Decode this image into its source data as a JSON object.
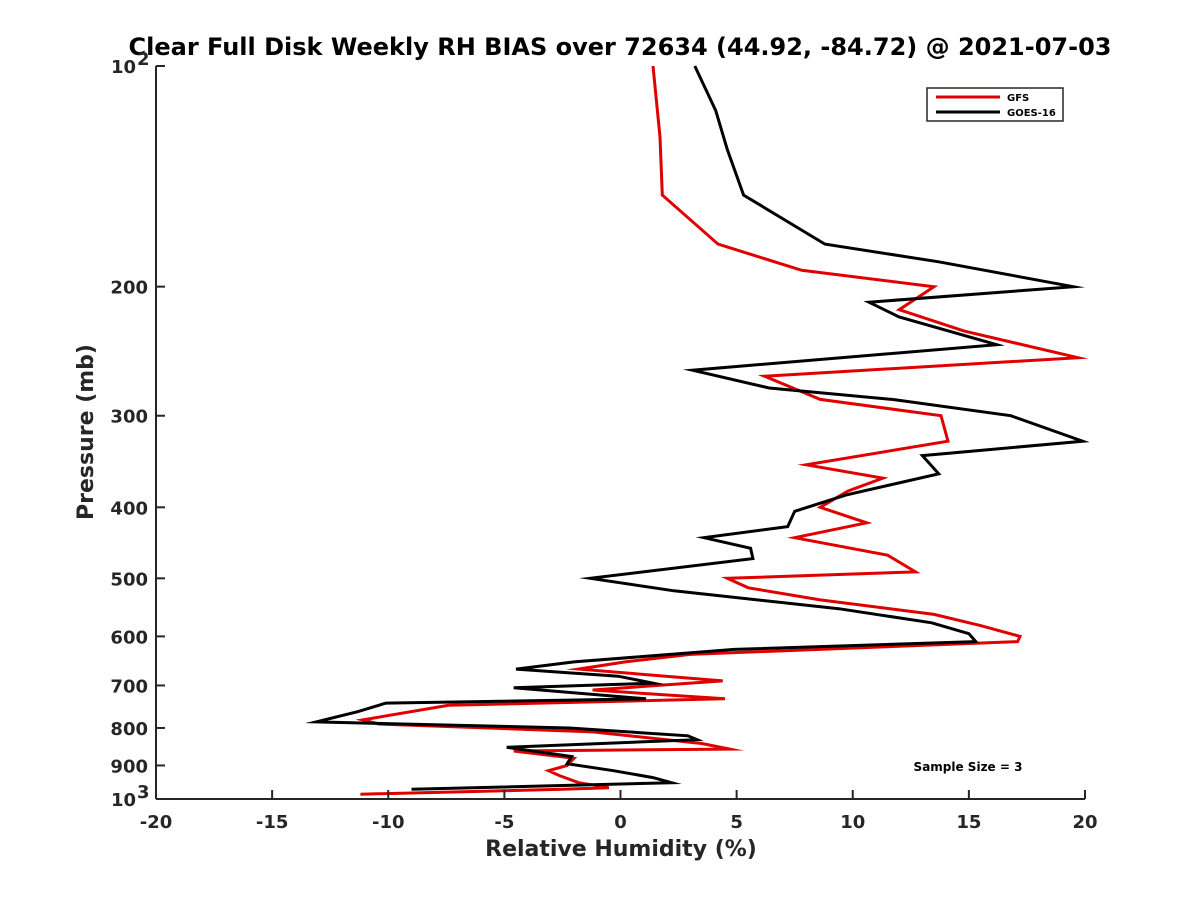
{
  "chart_data": {
    "type": "line",
    "title": "Clear Full Disk Weekly RH BIAS over 72634 (44.92, -84.72) @ 2021-07-03",
    "xlabel": "Relative Humidity (%)",
    "ylabel": "Pressure (mb)",
    "xlim": [
      -20,
      20
    ],
    "ylim": [
      100,
      1000
    ],
    "yscale": "log",
    "y_reversed": true,
    "x_ticks": [
      "-20",
      "-15",
      "-10",
      "-5",
      "0",
      "5",
      "10",
      "15",
      "20"
    ],
    "y_ticks": [
      {
        "value": 100,
        "label": "10",
        "exp": "2"
      },
      {
        "value": 200,
        "label": "200"
      },
      {
        "value": 300,
        "label": "300"
      },
      {
        "value": 400,
        "label": "400"
      },
      {
        "value": 500,
        "label": "500"
      },
      {
        "value": 600,
        "label": "600"
      },
      {
        "value": 700,
        "label": "700"
      },
      {
        "value": 800,
        "label": "800"
      },
      {
        "value": 900,
        "label": "900"
      },
      {
        "value": 1000,
        "label": "10",
        "exp": "3"
      }
    ],
    "legend_position": "top-right",
    "annotation": "Sample Size = 3",
    "series": [
      {
        "name": "GFS",
        "color": "#e00000",
        "points": [
          [
            1.4,
            100
          ],
          [
            1.7,
            125
          ],
          [
            1.8,
            150
          ],
          [
            4.2,
            175
          ],
          [
            7.8,
            190
          ],
          [
            13.5,
            200
          ],
          [
            12.0,
            215
          ],
          [
            14.8,
            230
          ],
          [
            19.7,
            250
          ],
          [
            6.2,
            265
          ],
          [
            8.6,
            285
          ],
          [
            13.8,
            300
          ],
          [
            14.1,
            325
          ],
          [
            8.0,
            350
          ],
          [
            11.3,
            365
          ],
          [
            9.8,
            380
          ],
          [
            8.6,
            400
          ],
          [
            10.6,
            420
          ],
          [
            7.5,
            440
          ],
          [
            11.5,
            465
          ],
          [
            12.7,
            490
          ],
          [
            4.6,
            500
          ],
          [
            5.5,
            515
          ],
          [
            8.6,
            535
          ],
          [
            13.5,
            560
          ],
          [
            15.5,
            580
          ],
          [
            17.2,
            600
          ],
          [
            17.1,
            610
          ],
          [
            3.0,
            635
          ],
          [
            0.2,
            650
          ],
          [
            -1.8,
            665
          ],
          [
            4.4,
            690
          ],
          [
            -1.2,
            710
          ],
          [
            4.5,
            730
          ],
          [
            -7.4,
            745
          ],
          [
            -11.1,
            780
          ],
          [
            -10.4,
            790
          ],
          [
            -1.2,
            810
          ],
          [
            3.5,
            840
          ],
          [
            4.7,
            855
          ],
          [
            -4.6,
            860
          ],
          [
            -2.0,
            880
          ],
          [
            -2.3,
            900
          ],
          [
            -3.1,
            915
          ],
          [
            -2.6,
            930
          ],
          [
            -1.8,
            950
          ],
          [
            -0.5,
            965
          ],
          [
            -2.5,
            970
          ],
          [
            -11.2,
            985
          ]
        ]
      },
      {
        "name": "GOES-16",
        "color": "#000000",
        "points": [
          [
            3.2,
            100
          ],
          [
            4.1,
            115
          ],
          [
            4.6,
            130
          ],
          [
            5.3,
            150
          ],
          [
            8.8,
            175
          ],
          [
            13.7,
            185
          ],
          [
            19.5,
            200
          ],
          [
            10.7,
            210
          ],
          [
            12.0,
            220
          ],
          [
            16.2,
            240
          ],
          [
            3.1,
            260
          ],
          [
            6.4,
            275
          ],
          [
            11.7,
            285
          ],
          [
            16.8,
            300
          ],
          [
            19.9,
            325
          ],
          [
            13.0,
            340
          ],
          [
            13.7,
            360
          ],
          [
            9.7,
            385
          ],
          [
            7.5,
            405
          ],
          [
            7.2,
            425
          ],
          [
            3.6,
            440
          ],
          [
            5.6,
            455
          ],
          [
            5.7,
            470
          ],
          [
            -1.3,
            500
          ],
          [
            2.3,
            520
          ],
          [
            9.4,
            550
          ],
          [
            13.4,
            575
          ],
          [
            15.0,
            595
          ],
          [
            15.3,
            610
          ],
          [
            4.9,
            625
          ],
          [
            -2.0,
            650
          ],
          [
            -4.5,
            665
          ],
          [
            -0.1,
            680
          ],
          [
            1.4,
            695
          ],
          [
            -4.6,
            705
          ],
          [
            1.1,
            730
          ],
          [
            -10.1,
            740
          ],
          [
            -11.3,
            760
          ],
          [
            -13.1,
            785
          ],
          [
            -2.2,
            800
          ],
          [
            2.9,
            820
          ],
          [
            3.3,
            830
          ],
          [
            -4.9,
            850
          ],
          [
            -2.1,
            875
          ],
          [
            -2.3,
            895
          ],
          [
            -0.3,
            915
          ],
          [
            1.4,
            935
          ],
          [
            2.2,
            950
          ],
          [
            -9.0,
            970
          ]
        ]
      }
    ]
  }
}
